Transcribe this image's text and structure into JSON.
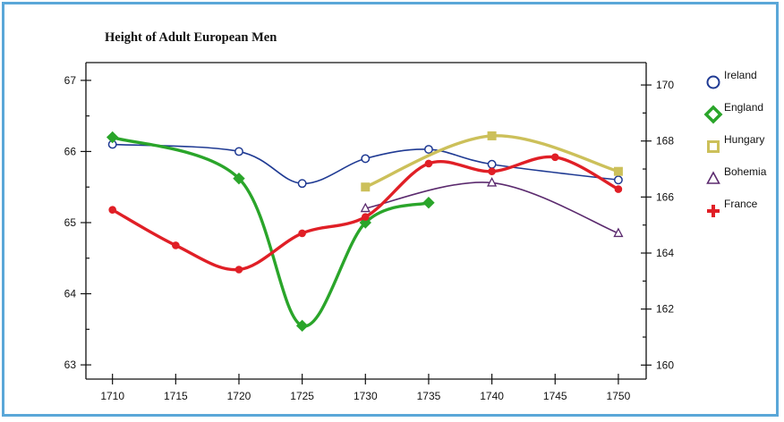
{
  "chart_data": {
    "type": "line",
    "title": "Height of Adult European Men",
    "xlabel": "",
    "ylabel": "",
    "y2label": "",
    "x_ticks": [
      1710,
      1715,
      1720,
      1725,
      1730,
      1735,
      1740,
      1745,
      1750
    ],
    "y_ticks": [
      63,
      64,
      65,
      66,
      67
    ],
    "y2_ticks": [
      160,
      162,
      164,
      166,
      168,
      170
    ],
    "xlim": [
      1707.9,
      1752.2
    ],
    "ylim": [
      62.8,
      67.25
    ],
    "y2lim": [
      159.5,
      170.8
    ],
    "grid": false,
    "legend_position": "right",
    "series": [
      {
        "name": "Ireland",
        "color": "#1f3a93",
        "marker": "circle",
        "stroke_width": 1.6,
        "x": [
          1710,
          1720,
          1725,
          1730,
          1735,
          1740,
          1750
        ],
        "y": [
          66.1,
          66.0,
          65.55,
          65.9,
          66.03,
          65.82,
          65.6
        ]
      },
      {
        "name": "England",
        "color": "#2aa52a",
        "marker": "diamond",
        "stroke_width": 3.4,
        "x": [
          1710,
          1720,
          1725,
          1730,
          1735
        ],
        "y": [
          66.2,
          65.62,
          63.55,
          65.0,
          65.28
        ]
      },
      {
        "name": "Hungary",
        "color": "#ccc05a",
        "marker": "square",
        "stroke_width": 3.4,
        "x": [
          1730,
          1740,
          1750
        ],
        "y": [
          65.5,
          66.22,
          65.72
        ]
      },
      {
        "name": "Bohemia",
        "color": "#5b2a6e",
        "marker": "triangle",
        "stroke_width": 1.6,
        "x": [
          1730,
          1740,
          1750
        ],
        "y": [
          65.2,
          65.56,
          64.85
        ]
      },
      {
        "name": "France",
        "color": "#e01f26",
        "marker": "cross",
        "stroke_width": 3.4,
        "x": [
          1710,
          1715,
          1720,
          1725,
          1730,
          1735,
          1740,
          1745,
          1750
        ],
        "y": [
          65.18,
          64.68,
          64.34,
          64.85,
          65.08,
          65.83,
          65.72,
          65.92,
          65.47
        ]
      }
    ]
  }
}
